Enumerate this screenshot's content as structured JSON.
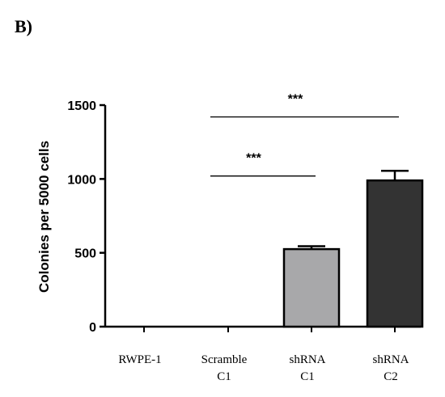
{
  "panel_label": "B)",
  "colors": {
    "axis": "#000000",
    "bar_fills": [
      "#ffffff",
      "#ffffff",
      "#a8a8aa",
      "#333333"
    ]
  },
  "chart_data": {
    "type": "bar",
    "categories": [
      [
        "RWPE-1"
      ],
      [
        "Scramble",
        "C1"
      ],
      [
        "shRNA",
        "C1"
      ],
      [
        "shRNA",
        "C2"
      ]
    ],
    "values": [
      0,
      0,
      525,
      990
    ],
    "errors": [
      0,
      0,
      20,
      65
    ],
    "title": "",
    "xlabel": "",
    "ylabel": "Colonies per 5000 cells",
    "ylim": [
      0,
      1500
    ],
    "yticks": [
      0,
      500,
      1000,
      1500
    ],
    "grid": false,
    "significance": [
      {
        "from": 1,
        "to": 2,
        "label": "***",
        "y": 1020
      },
      {
        "from": 1,
        "to": 3,
        "label": "***",
        "y": 1420
      }
    ]
  }
}
